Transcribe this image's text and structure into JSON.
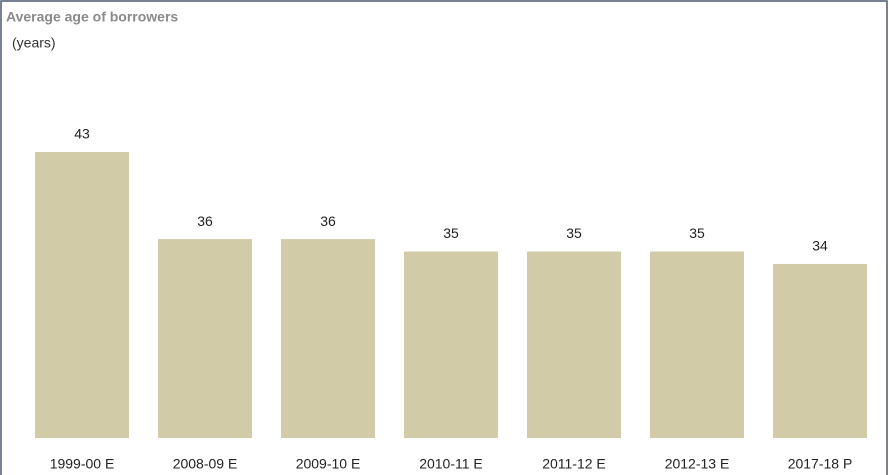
{
  "chart_data": {
    "type": "bar",
    "title": "Average age of borrowers",
    "subtitle": "(years)",
    "categories": [
      "1999-00 E",
      "2008-09 E",
      "2009-10 E",
      "2010-11 E",
      "2011-12 E",
      "2012-13 E",
      "2017-18 P"
    ],
    "values": [
      43,
      36,
      36,
      35,
      35,
      35,
      34
    ],
    "color": "#d1cba8",
    "ylim": [
      20,
      50
    ]
  }
}
